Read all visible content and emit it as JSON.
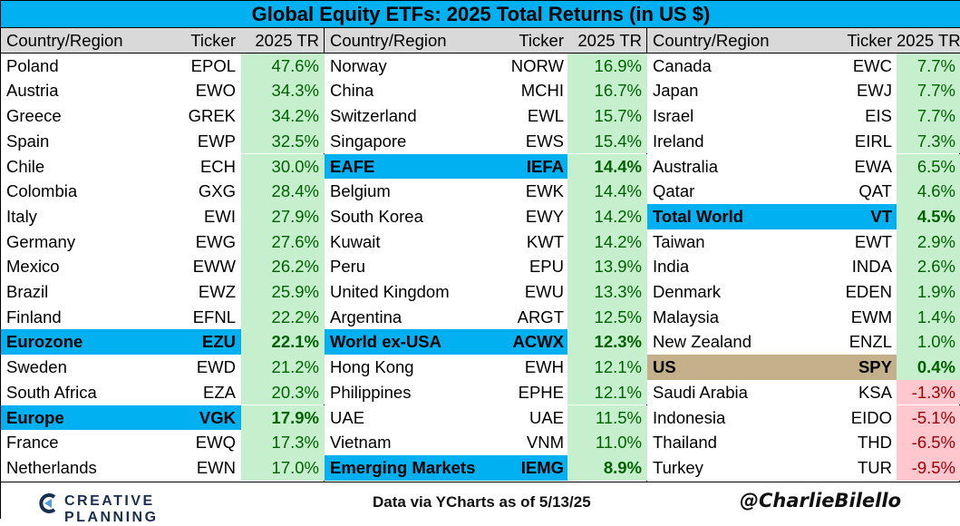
{
  "colors": {
    "title_bg": "#00b0f0",
    "header_bg": "#d9d9d9",
    "highlight_blue": "#00b0f0",
    "highlight_tan": "#c4b08a",
    "positive_fill": "#c6efce",
    "negative_fill": "#ffc7ce",
    "positive_text": "#006100",
    "negative_text": "#9c0006"
  },
  "chart_data": {
    "type": "table",
    "title": "Global Equity ETFs: 2025 Total Returns (in US $)",
    "columns": [
      "Country/Region",
      "Ticker",
      "2025 TR"
    ],
    "value_unit": "%",
    "panels": [
      [
        {
          "name": "Poland",
          "ticker": "EPOL",
          "value": 47.6
        },
        {
          "name": "Austria",
          "ticker": "EWO",
          "value": 34.3
        },
        {
          "name": "Greece",
          "ticker": "GREK",
          "value": 34.2
        },
        {
          "name": "Spain",
          "ticker": "EWP",
          "value": 32.5
        },
        {
          "name": "Chile",
          "ticker": "ECH",
          "value": 30.0
        },
        {
          "name": "Colombia",
          "ticker": "GXG",
          "value": 28.4
        },
        {
          "name": "Italy",
          "ticker": "EWI",
          "value": 27.9
        },
        {
          "name": "Germany",
          "ticker": "EWG",
          "value": 27.6
        },
        {
          "name": "Mexico",
          "ticker": "EWW",
          "value": 26.2
        },
        {
          "name": "Brazil",
          "ticker": "EWZ",
          "value": 25.9
        },
        {
          "name": "Finland",
          "ticker": "EFNL",
          "value": 22.2
        },
        {
          "name": "Eurozone",
          "ticker": "EZU",
          "value": 22.1,
          "highlight": "blue"
        },
        {
          "name": "Sweden",
          "ticker": "EWD",
          "value": 21.2
        },
        {
          "name": "South Africa",
          "ticker": "EZA",
          "value": 20.3
        },
        {
          "name": "Europe",
          "ticker": "VGK",
          "value": 17.9,
          "highlight": "blue"
        },
        {
          "name": "France",
          "ticker": "EWQ",
          "value": 17.3
        },
        {
          "name": "Netherlands",
          "ticker": "EWN",
          "value": 17.0
        }
      ],
      [
        {
          "name": "Norway",
          "ticker": "NORW",
          "value": 16.9
        },
        {
          "name": "China",
          "ticker": "MCHI",
          "value": 16.7
        },
        {
          "name": "Switzerland",
          "ticker": "EWL",
          "value": 15.7
        },
        {
          "name": "Singapore",
          "ticker": "EWS",
          "value": 15.4
        },
        {
          "name": "EAFE",
          "ticker": "IEFA",
          "value": 14.4,
          "highlight": "blue"
        },
        {
          "name": "Belgium",
          "ticker": "EWK",
          "value": 14.4
        },
        {
          "name": "South Korea",
          "ticker": "EWY",
          "value": 14.2
        },
        {
          "name": "Kuwait",
          "ticker": "KWT",
          "value": 14.2
        },
        {
          "name": "Peru",
          "ticker": "EPU",
          "value": 13.9
        },
        {
          "name": "United Kingdom",
          "ticker": "EWU",
          "value": 13.3
        },
        {
          "name": "Argentina",
          "ticker": "ARGT",
          "value": 12.5
        },
        {
          "name": "World ex-USA",
          "ticker": "ACWX",
          "value": 12.3,
          "highlight": "blue"
        },
        {
          "name": "Hong Kong",
          "ticker": "EWH",
          "value": 12.1
        },
        {
          "name": "Philippines",
          "ticker": "EPHE",
          "value": 12.1
        },
        {
          "name": "UAE",
          "ticker": "UAE",
          "value": 11.5
        },
        {
          "name": "Vietnam",
          "ticker": "VNM",
          "value": 11.0
        },
        {
          "name": "Emerging Markets",
          "ticker": "IEMG",
          "value": 8.9,
          "highlight": "blue"
        }
      ],
      [
        {
          "name": "Canada",
          "ticker": "EWC",
          "value": 7.7
        },
        {
          "name": "Japan",
          "ticker": "EWJ",
          "value": 7.7
        },
        {
          "name": "Israel",
          "ticker": "EIS",
          "value": 7.7
        },
        {
          "name": "Ireland",
          "ticker": "EIRL",
          "value": 7.3
        },
        {
          "name": "Australia",
          "ticker": "EWA",
          "value": 6.5
        },
        {
          "name": "Qatar",
          "ticker": "QAT",
          "value": 4.6
        },
        {
          "name": "Total World",
          "ticker": "VT",
          "value": 4.5,
          "highlight": "blue"
        },
        {
          "name": "Taiwan",
          "ticker": "EWT",
          "value": 2.9
        },
        {
          "name": "India",
          "ticker": "INDA",
          "value": 2.6
        },
        {
          "name": "Denmark",
          "ticker": "EDEN",
          "value": 1.9
        },
        {
          "name": "Malaysia",
          "ticker": "EWM",
          "value": 1.4
        },
        {
          "name": "New Zealand",
          "ticker": "ENZL",
          "value": 1.0
        },
        {
          "name": "US",
          "ticker": "SPY",
          "value": 0.4,
          "highlight": "tan"
        },
        {
          "name": "Saudi Arabia",
          "ticker": "KSA",
          "value": -1.3
        },
        {
          "name": "Indonesia",
          "ticker": "EIDO",
          "value": -5.1
        },
        {
          "name": "Thailand",
          "ticker": "THD",
          "value": -6.5
        },
        {
          "name": "Turkey",
          "ticker": "TUR",
          "value": -9.5
        }
      ]
    ]
  },
  "footer": {
    "logo_text": "CREATIVE PLANNING",
    "logo_icon": "creative-planning-logo-icon",
    "source": "Data via YCharts as of 5/13/25",
    "handle": "@CharlieBilello"
  }
}
